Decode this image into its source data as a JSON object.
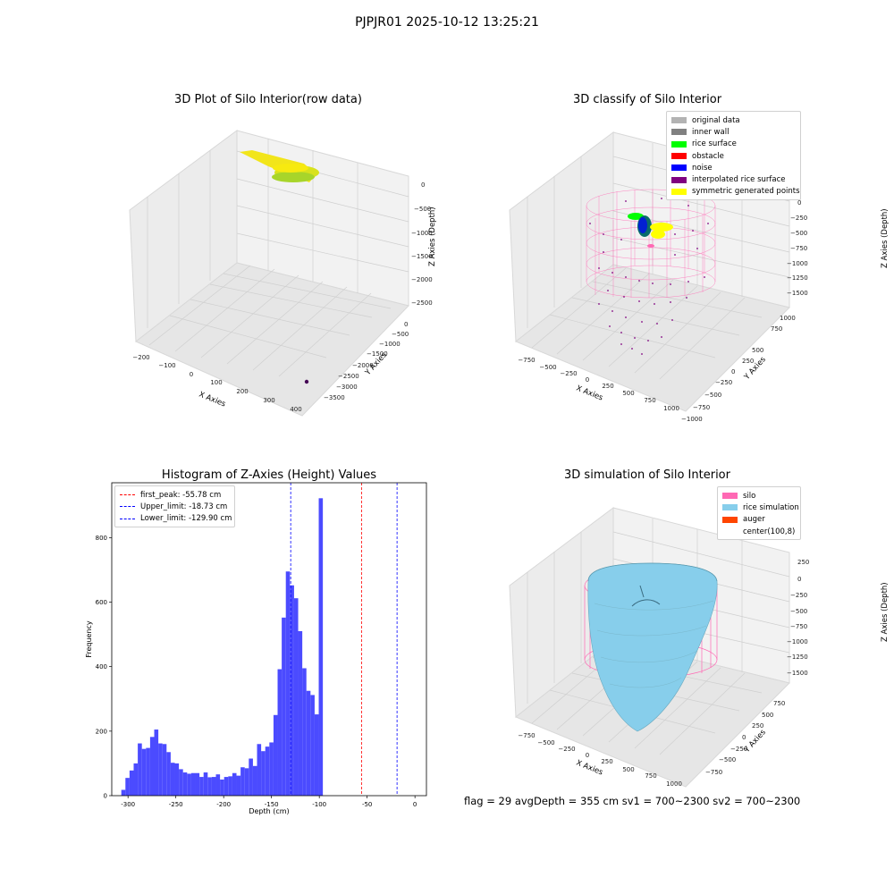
{
  "figure_title": "PJPJR01 2025-10-12 13:25:21",
  "panels": {
    "raw": {
      "title": "3D Plot of Silo Interior(row data)",
      "xlabel": "X Axies",
      "ylabel": "Y Axies",
      "zlabel": "Z Axies (Depth)",
      "xticks": [
        "−200",
        "−100",
        "0",
        "100",
        "200",
        "300",
        "400"
      ],
      "yticks": [
        "0",
        "−500",
        "−1000",
        "−1500",
        "−2000",
        "−2500",
        "−3000",
        "−3500"
      ],
      "zticks": [
        "0",
        "−500",
        "−1000",
        "−1500",
        "−2000",
        "−2500"
      ]
    },
    "classify": {
      "title": "3D classify of Silo Interior",
      "xlabel": "X Axies",
      "ylabel": "Y Axies",
      "zlabel": "Z Axies (Depth)",
      "xticks": [
        "−750",
        "−500",
        "−250",
        "0",
        "250",
        "500",
        "750",
        "1000"
      ],
      "yticks": [
        "1000",
        "750",
        "500",
        "250",
        "0",
        "−250",
        "−500",
        "−750",
        "−1000"
      ],
      "zticks": [
        "0",
        "0",
        "−250",
        "−500",
        "−750",
        "−1000",
        "−1250",
        "−1500"
      ],
      "legend": [
        {
          "label": "original data",
          "color": "#b3b3b3"
        },
        {
          "label": "inner wall",
          "color": "#808080"
        },
        {
          "label": "rice surface",
          "color": "#00ff00"
        },
        {
          "label": "obstacle",
          "color": "#ff0000"
        },
        {
          "label": "noise",
          "color": "#0000ff"
        },
        {
          "label": "interpolated rice surface",
          "color": "#800080"
        },
        {
          "label": "symmetric generated points",
          "color": "#ffff00"
        }
      ]
    },
    "simulation": {
      "title": "3D simulation of Silo Interior",
      "xlabel": "X Axies",
      "ylabel": "Y Axies",
      "zlabel": "Z Axies (Depth)",
      "xticks": [
        "−750",
        "−500",
        "−250",
        "0",
        "250",
        "500",
        "750",
        "1000"
      ],
      "yticks": [
        "750",
        "500",
        "250",
        "0",
        "−250",
        "−500",
        "−750"
      ],
      "zticks": [
        "250",
        "0",
        "−250",
        "−500",
        "−750",
        "−1000",
        "−1250",
        "−1500"
      ],
      "legend": [
        {
          "label": "silo",
          "color": "#ff69b4"
        },
        {
          "label": "rice simulation",
          "color": "#87ceeb"
        },
        {
          "label": "auger",
          "color": "#ff4500"
        },
        {
          "label": "center(100,8)",
          "color": "#ffffff"
        }
      ]
    }
  },
  "footer": {
    "status": "flag = 29  avgDepth = 355 cm  sv1 = 700~2300  sv2 = 700~2300"
  },
  "chart_data": [
    {
      "type": "bar",
      "title": "Histogram of Z-Axies (Height) Values",
      "xlabel": "Depth (cm)",
      "ylabel": "Frequency",
      "bar_color": "#4b4bff",
      "bin_start": -307,
      "bin_width": 4.3,
      "values": [
        18,
        55,
        78,
        100,
        162,
        145,
        148,
        182,
        205,
        162,
        160,
        135,
        102,
        100,
        82,
        72,
        68,
        70,
        70,
        58,
        72,
        57,
        58,
        66,
        50,
        58,
        60,
        70,
        62,
        88,
        85,
        115,
        92,
        160,
        138,
        152,
        165,
        250,
        392,
        552,
        695,
        652,
        612,
        510,
        395,
        325,
        312,
        252,
        922
      ],
      "xlim": [
        -317,
        12
      ],
      "ylim": [
        0,
        970
      ],
      "xticks": [
        -300,
        -250,
        -200,
        -150,
        -100,
        -50,
        0
      ],
      "yticks": [
        0,
        200,
        400,
        600,
        800
      ],
      "vlines": [
        {
          "label": "first_peak: -55.78 cm",
          "x": -55.78,
          "color": "#ff0000"
        },
        {
          "label": "Upper_limit: -18.73 cm",
          "x": -18.73,
          "color": "#0000ff"
        },
        {
          "label": "Lower_limit: -129.90 cm",
          "x": -129.9,
          "color": "#0000ff"
        }
      ],
      "legend_position": "top-left",
      "grid": false
    }
  ]
}
